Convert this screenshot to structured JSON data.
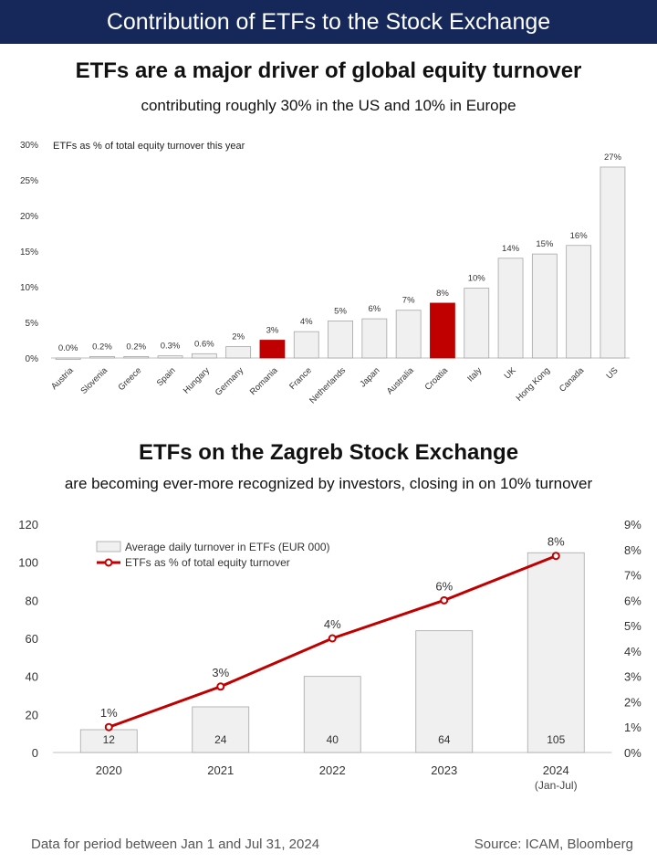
{
  "header": {
    "title": "Contribution of ETFs to the Stock Exchange"
  },
  "section1": {
    "title": "ETFs are a major driver of global equity turnover",
    "subtitle": "contributing roughly 30% in the US and 10% in Europe"
  },
  "section2": {
    "title": "ETFs on the Zagreb Stock Exchange",
    "subtitle": "are becoming ever-more recognized by investors, closing in on 10% turnover"
  },
  "footer": {
    "left": "Data for period between Jan 1 and Jul 31, 2024",
    "right": "Source: ICAM, Bloomberg"
  },
  "colors": {
    "banner": "#16285a",
    "highlight": "#c00000",
    "bar": "#f0f0f0",
    "barBorder": "#a6a6a6",
    "line": "#c00000"
  },
  "chart_data": [
    {
      "type": "bar",
      "title": "ETFs as % of total equity turnover this year",
      "categories": [
        "Austria",
        "Slovenia",
        "Greece",
        "Spain",
        "Hungary",
        "Germany",
        "Romania",
        "France",
        "Netherlands",
        "Japan",
        "Australia",
        "Croatia",
        "Italy",
        "UK",
        "Hong Kong",
        "Canada",
        "US"
      ],
      "values": [
        0.0,
        0.2,
        0.2,
        0.3,
        0.6,
        1.6,
        2.5,
        3.7,
        5.2,
        5.5,
        6.7,
        7.7,
        9.8,
        14.0,
        14.6,
        15.8,
        26.8
      ],
      "data_labels": [
        "0.0%",
        "0.2%",
        "0.2%",
        "0.3%",
        "0.6%",
        "2%",
        "3%",
        "4%",
        "5%",
        "6%",
        "7%",
        "8%",
        "10%",
        "14%",
        "15%",
        "16%",
        "27%"
      ],
      "highlighted": [
        "Romania",
        "Croatia"
      ],
      "ylim": [
        0,
        30
      ],
      "yticks": [
        "0%",
        "5%",
        "10%",
        "15%",
        "20%",
        "25%",
        "30%"
      ],
      "grid": false
    },
    {
      "type": "bar+line",
      "categories": [
        "2020",
        "2021",
        "2022",
        "2023",
        "2024"
      ],
      "category_sublabels": [
        "",
        "",
        "",
        "",
        "(Jan-Jul)"
      ],
      "series": [
        {
          "name": "Average daily turnover in ETFs (EUR 000)",
          "type": "bar",
          "axis": "left",
          "values": [
            12,
            24,
            40,
            64,
            105
          ],
          "labels": [
            "12",
            "24",
            "40",
            "64",
            "105"
          ]
        },
        {
          "name": "ETFs as % of total equity turnover",
          "type": "line",
          "axis": "right",
          "values": [
            1.0,
            2.6,
            4.5,
            6.0,
            7.75
          ],
          "labels": [
            "1%",
            "3%",
            "4%",
            "6%",
            "8%"
          ]
        }
      ],
      "ylim_left": [
        0,
        120
      ],
      "yticks_left": [
        "0",
        "20",
        "40",
        "60",
        "80",
        "100",
        "120"
      ],
      "ylim_right": [
        0,
        9
      ],
      "yticks_right": [
        "0%",
        "1%",
        "2%",
        "3%",
        "4%",
        "5%",
        "6%",
        "7%",
        "8%",
        "9%"
      ],
      "legend": "top-left",
      "grid": false
    }
  ]
}
